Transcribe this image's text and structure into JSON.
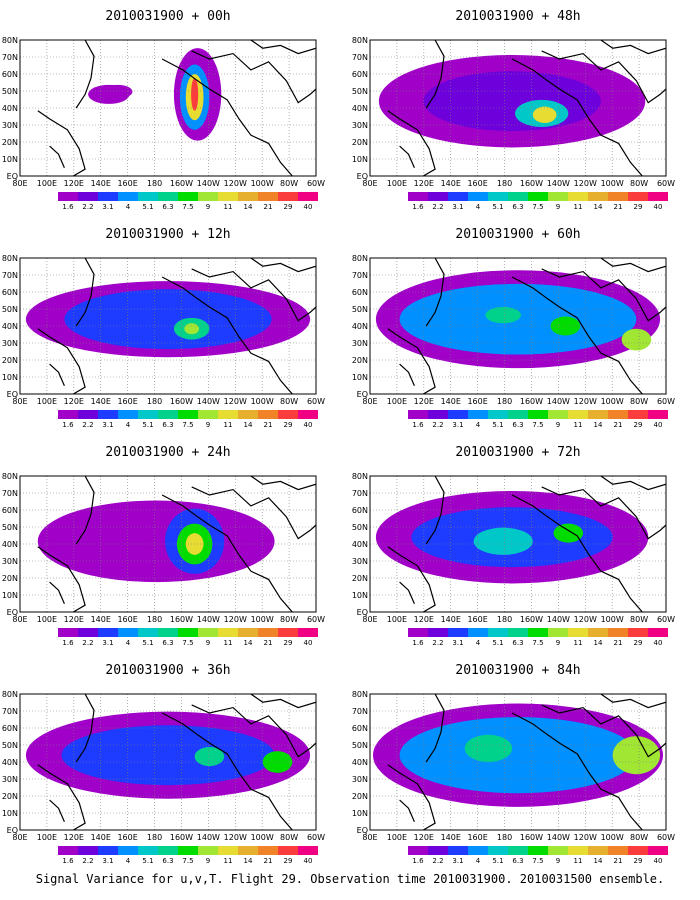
{
  "figure": {
    "caption": "Signal Variance for u,v,T. Flight 29. Observation time 2010031900. 2010031500 ensemble."
  },
  "panels": [
    {
      "title": "2010031900 + 00h",
      "level": 0
    },
    {
      "title": "2010031900 + 48h",
      "level": 4
    },
    {
      "title": "2010031900 + 12h",
      "level": 1
    },
    {
      "title": "2010031900 + 60h",
      "level": 5
    },
    {
      "title": "2010031900 + 24h",
      "level": 2
    },
    {
      "title": "2010031900 + 72h",
      "level": 6
    },
    {
      "title": "2010031900 + 36h",
      "level": 3
    },
    {
      "title": "2010031900 + 84h",
      "level": 7
    }
  ],
  "axes": {
    "x_ticks": [
      "80E",
      "100E",
      "120E",
      "140E",
      "160E",
      "180",
      "160W",
      "140W",
      "120W",
      "100W",
      "80W",
      "60W"
    ],
    "y_ticks": [
      "EQ",
      "10N",
      "20N",
      "30N",
      "40N",
      "50N",
      "60N",
      "70N",
      "80N"
    ]
  },
  "colorbar": {
    "labels": [
      "1.6",
      "2.2",
      "3.1",
      "4",
      "5.1",
      "6.3",
      "7.5",
      "9",
      "11",
      "14",
      "21",
      "29",
      "40"
    ],
    "colors": [
      "#a000c8",
      "#6e00dc",
      "#1e3cff",
      "#0090ff",
      "#00c8c8",
      "#00d28c",
      "#00dc00",
      "#a0e632",
      "#e6dc32",
      "#e6af2d",
      "#f08228",
      "#fa3c3c",
      "#f00082"
    ]
  },
  "colors": {
    "grid": "#7f7f7f",
    "land": "#000000"
  }
}
